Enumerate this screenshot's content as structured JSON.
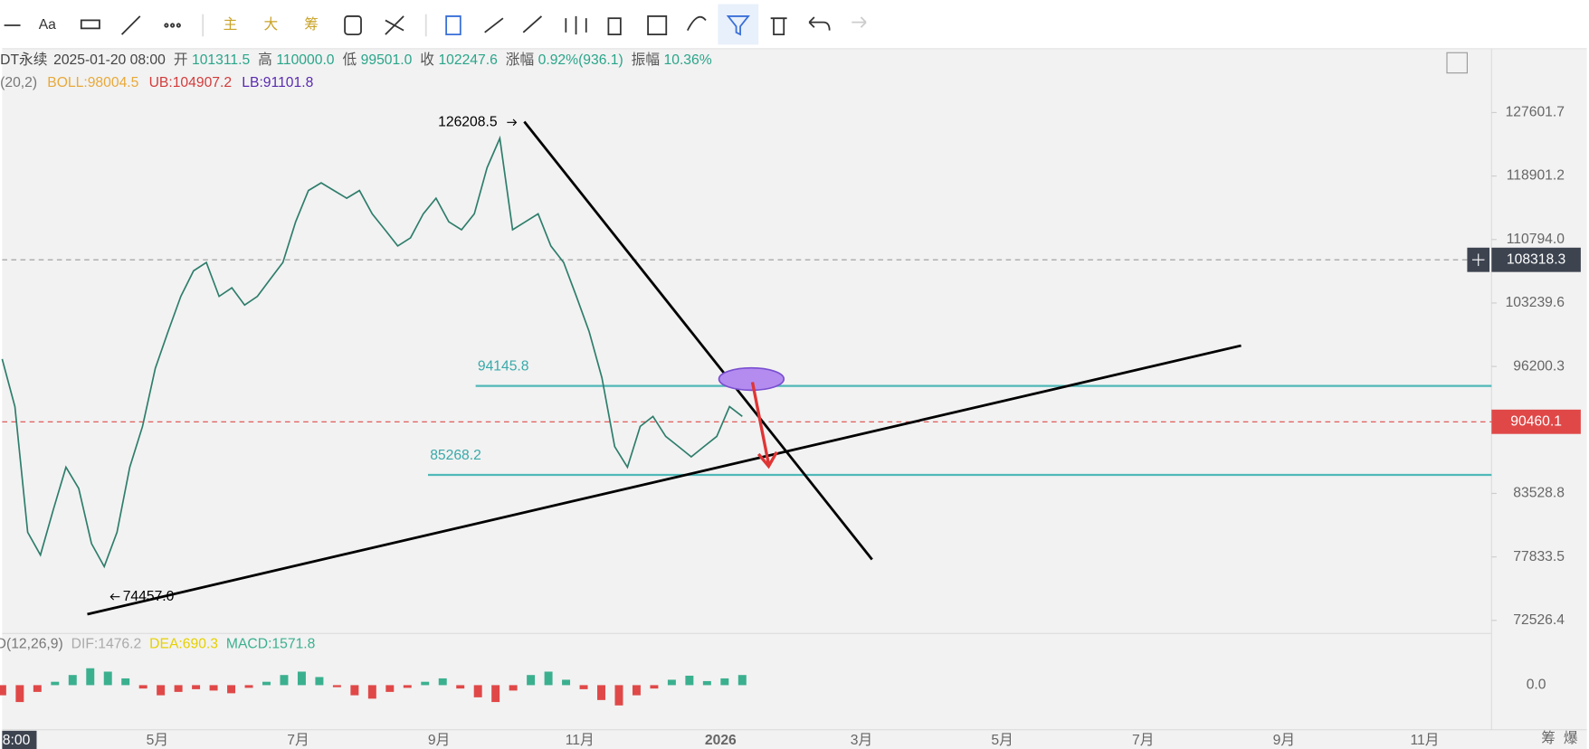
{
  "toolbar": {
    "font": "Aa",
    "buttons": [
      "主",
      "大",
      "筹"
    ]
  },
  "info": {
    "symbol": "DT永续",
    "datetime": "2025-01-20 08:00",
    "fields": [
      {
        "label": "开",
        "value": "101311.5"
      },
      {
        "label": "高",
        "value": "110000.0"
      },
      {
        "label": "低",
        "value": "99501.0"
      },
      {
        "label": "收",
        "value": "102247.6"
      },
      {
        "label": "涨幅",
        "value": "0.92%(936.1)"
      },
      {
        "label": "振幅",
        "value": "10.36%"
      }
    ]
  },
  "boll": {
    "params": "(20,2)",
    "items": [
      {
        "text": "BOLL:98004.5",
        "color": "#e8a93a"
      },
      {
        "text": "UB:104907.2",
        "color": "#d33b3b"
      },
      {
        "text": "LB:91101.8",
        "color": "#5a2bb0"
      }
    ]
  },
  "price_axis": {
    "log": true,
    "ylim": [
      71480,
      137000
    ],
    "yticks": [
      127601.7,
      118901.2,
      {
        "value": 110794,
        "label": "110794.0"
      },
      103239.6,
      96200.3,
      83528.8,
      77833.5,
      72526.4
    ]
  },
  "price": {
    "values": [
      97000,
      92000,
      80000,
      78000,
      82000,
      86000,
      84000,
      79000,
      77000,
      80000,
      86000,
      90000,
      96000,
      100000,
      104000,
      107000,
      108000,
      104000,
      105000,
      103000,
      104000,
      106000,
      108000,
      113000,
      117000,
      118000,
      117000,
      116000,
      117000,
      114000,
      112000,
      110000,
      111000,
      114000,
      116000,
      113000,
      112000,
      114000,
      120000,
      124000,
      112000,
      113000,
      114000,
      110000,
      108000,
      104000,
      100000,
      95000,
      88000,
      86000,
      90000,
      91000,
      89000,
      88000,
      87000,
      88000,
      89000,
      92000,
      91000
    ],
    "color": "#2e7d6b"
  },
  "levels": {
    "current": {
      "value": 90460.1,
      "label": "90460.1"
    },
    "dashed": {
      "value": 108318.3,
      "label": "108318.3"
    },
    "resistance": {
      "value": 94145.8,
      "label": "94145.8"
    },
    "support": {
      "value": 85268.2,
      "label": "85268.2"
    },
    "high": {
      "value": 126208.5,
      "label": "126208.5"
    },
    "low": {
      "value": 74457.0,
      "label": "74457.0"
    }
  },
  "macd": {
    "params": "D(12,26,9)",
    "items": [
      {
        "text": "DIF:1476.2",
        "color": "#aaaaaa"
      },
      {
        "text": "DEA:690.3",
        "color": "#e6d000"
      },
      {
        "text": "MACD:1571.8",
        "color": "#3bb08f"
      }
    ],
    "zero_label": "0.0",
    "ylim": [
      -6000,
      6000
    ],
    "values": [
      -1500,
      -2500,
      -1000,
      500,
      1500,
      2500,
      2000,
      1000,
      -500,
      -1500,
      -1000,
      -600,
      -800,
      -1200,
      -400,
      500,
      1500,
      2000,
      1200,
      -300,
      -1500,
      -2000,
      -1000,
      -400,
      500,
      1000,
      -500,
      -1800,
      -2500,
      -800,
      1500,
      2000,
      800,
      -600,
      -2200,
      -3000,
      -1500,
      -500,
      800,
      1400,
      600,
      1000,
      1500
    ]
  },
  "x_labels": [
    "8:00",
    "5月",
    "7月",
    "9月",
    "11月",
    "2026",
    "3月",
    "5月",
    "7月",
    "9月",
    "11月"
  ],
  "footer": [
    "筹",
    "爆"
  ]
}
